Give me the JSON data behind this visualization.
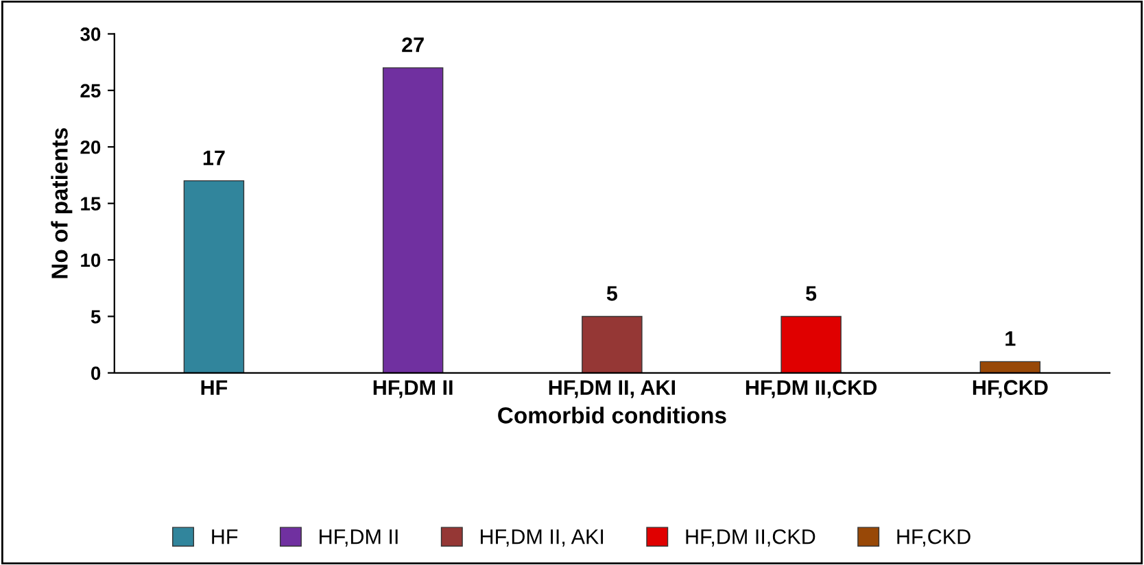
{
  "chart_data": {
    "type": "bar",
    "xlabel": "Comorbid conditions",
    "ylabel": "No of patients",
    "categories": [
      "HF",
      "HF,DM II",
      "HF,DM II, AKI",
      "HF,DM II,CKD",
      "HF,CKD"
    ],
    "series": [
      {
        "name": "HF",
        "color": "#31859c",
        "values": [
          17,
          null,
          null,
          null,
          null
        ]
      },
      {
        "name": "HF,DM II",
        "color": "#7030a0",
        "values": [
          null,
          27,
          null,
          null,
          null
        ]
      },
      {
        "name": "HF,DM II, AKI",
        "color": "#953735",
        "values": [
          null,
          null,
          5,
          null,
          null
        ]
      },
      {
        "name": "HF,DM II,CKD",
        "color": "#e00000",
        "values": [
          null,
          null,
          null,
          5,
          null
        ]
      },
      {
        "name": "HF,CKD",
        "color": "#984807",
        "values": [
          null,
          null,
          null,
          null,
          1
        ]
      }
    ],
    "ylim": [
      0,
      30
    ],
    "yticks": [
      0,
      5,
      10,
      15,
      20,
      25,
      30
    ],
    "grid": false,
    "legend": "bottom",
    "data_labels": true
  }
}
